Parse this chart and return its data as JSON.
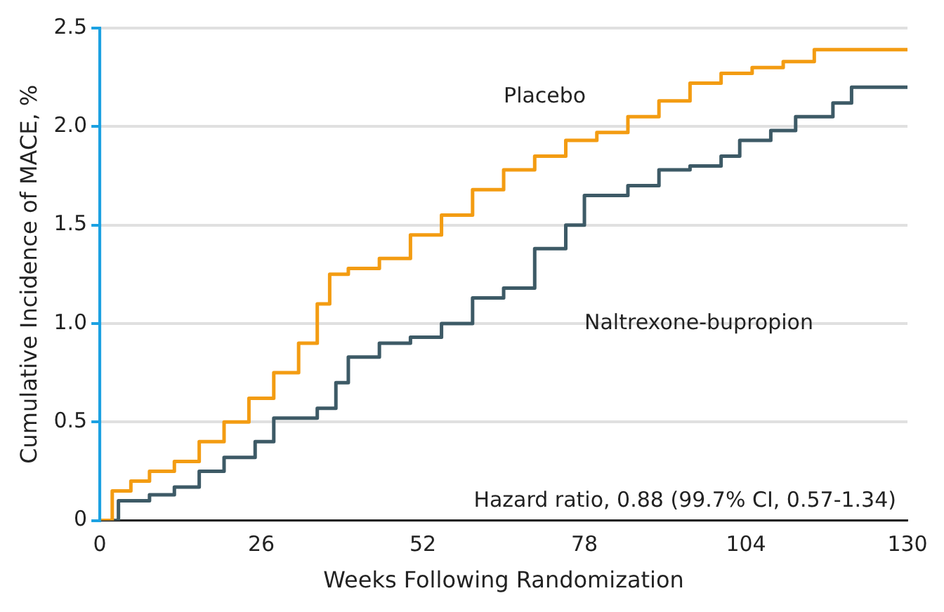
{
  "chart_data": {
    "type": "step",
    "xlabel": "Weeks Following Randomization",
    "ylabel": "Cumulative Incidence of MACE, %",
    "xlim": [
      0,
      130
    ],
    "xticks": [
      0,
      26,
      52,
      78,
      104,
      130
    ],
    "ylim": [
      0,
      2.5
    ],
    "yticks": [
      0,
      {
        "value": 0.5,
        "label": "0.5"
      },
      {
        "value": 1,
        "label": "1.0"
      },
      {
        "value": 1.5,
        "label": "1.5"
      },
      {
        "value": 2,
        "label": "2.0"
      },
      {
        "value": 2.5,
        "label": "2.5"
      }
    ],
    "grid": "y",
    "legend": false,
    "marker": "none",
    "line_style": "solid",
    "annotations": [
      "Hazard ratio, 0.88 (99.7% CI, 0.57-1.34)"
    ],
    "series": [
      {
        "name": "Placebo",
        "color": "#f39c12",
        "x": [
          0,
          2,
          5,
          8,
          12,
          16,
          20,
          24,
          28,
          32,
          35,
          37,
          40,
          45,
          50,
          55,
          60,
          65,
          70,
          75,
          80,
          85,
          90,
          95,
          100,
          105,
          110,
          115,
          130
        ],
        "values": [
          0,
          0.15,
          0.2,
          0.25,
          0.3,
          0.4,
          0.5,
          0.62,
          0.75,
          0.9,
          1.1,
          1.25,
          1.28,
          1.33,
          1.45,
          1.55,
          1.68,
          1.78,
          1.85,
          1.93,
          1.97,
          2.05,
          2.13,
          2.22,
          2.27,
          2.3,
          2.33,
          2.39,
          2.39
        ]
      },
      {
        "name": "Naltrexone-bupropion",
        "color": "#3d5a66",
        "x": [
          0,
          3,
          8,
          12,
          16,
          20,
          25,
          28,
          35,
          38,
          40,
          45,
          50,
          55,
          60,
          65,
          70,
          75,
          78,
          85,
          90,
          95,
          100,
          103,
          108,
          112,
          118,
          121,
          130
        ],
        "values": [
          0,
          0.1,
          0.13,
          0.17,
          0.25,
          0.32,
          0.4,
          0.52,
          0.57,
          0.7,
          0.83,
          0.9,
          0.93,
          1.0,
          1.13,
          1.18,
          1.38,
          1.5,
          1.65,
          1.7,
          1.78,
          1.8,
          1.85,
          1.93,
          1.98,
          2.05,
          2.12,
          2.2,
          2.2
        ]
      }
    ]
  }
}
